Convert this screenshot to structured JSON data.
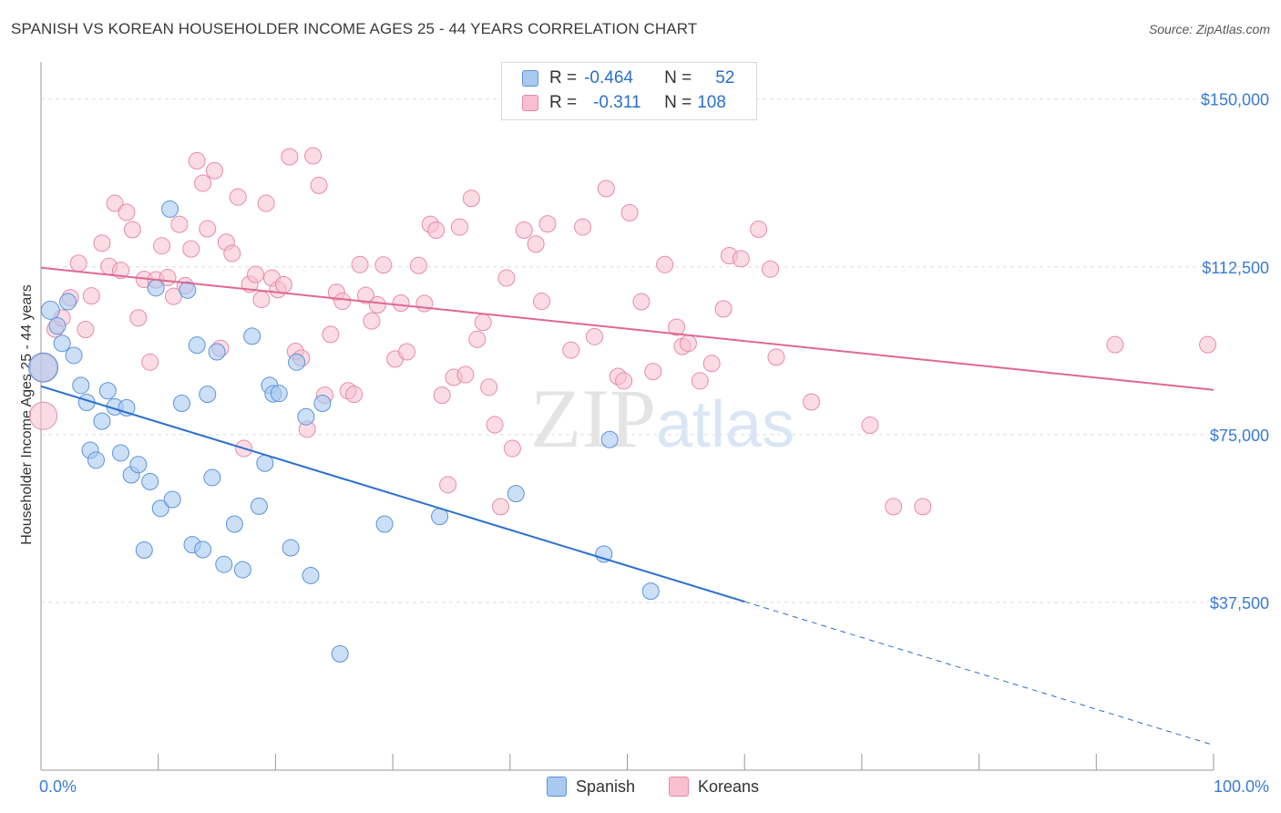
{
  "header": {
    "title": "SPANISH VS KOREAN HOUSEHOLDER INCOME AGES 25 - 44 YEARS CORRELATION CHART",
    "source": "Source: ZipAtlas.com"
  },
  "watermark": {
    "part1": "ZIP",
    "part2": "atlas"
  },
  "legend_top": {
    "rows": [
      {
        "r_label": "R =",
        "r_value": "-0.464",
        "n_label": "N =",
        "n_value": "52"
      },
      {
        "r_label": "R =",
        "r_value": "-0.311",
        "n_label": "N =",
        "n_value": "108"
      }
    ]
  },
  "legend_bottom": {
    "series1": "Spanish",
    "series2": "Koreans"
  },
  "colors": {
    "spanish_fill": "#a9c9f0",
    "spanish_stroke": "#5b93d9",
    "spanish_line": "#2a6fd0",
    "korean_fill": "#f7bfd0",
    "korean_stroke": "#e88aa8",
    "korean_line": "#e06890",
    "tick_label": "#3a7bd5",
    "grid": "#dddddd"
  },
  "chart_data": {
    "type": "scatter",
    "title": "SPANISH VS KOREAN HOUSEHOLDER INCOME AGES 25 - 44 YEARS CORRELATION CHART",
    "xlabel": "",
    "ylabel": "Householder Income Ages 25 - 44 years",
    "xlim": [
      0,
      100
    ],
    "ylim": [
      0,
      156250
    ],
    "x_tick_labels": [
      "0.0%",
      "100.0%"
    ],
    "y_ticks": [
      37500,
      75000,
      112500,
      150000
    ],
    "y_tick_labels": [
      "$37,500",
      "$75,000",
      "$112,500",
      "$150,000"
    ],
    "grid": true,
    "legend_position": "top-center",
    "series": [
      {
        "name": "Spanish",
        "r": -0.464,
        "n": 52,
        "trend": {
          "x0": 0,
          "y0": 85800,
          "x1": 100,
          "y1": 5600,
          "solid_until_x": 60
        },
        "points": [
          [
            0.2,
            90000,
            16
          ],
          [
            0.8,
            102800,
            10
          ],
          [
            1.4,
            99300,
            9
          ],
          [
            1.8,
            95400,
            9
          ],
          [
            2.3,
            104700,
            9
          ],
          [
            2.8,
            92700,
            9
          ],
          [
            3.4,
            86000,
            9
          ],
          [
            3.9,
            82200,
            9
          ],
          [
            4.2,
            71500,
            9
          ],
          [
            4.7,
            69300,
            9
          ],
          [
            5.2,
            78000,
            9
          ],
          [
            5.7,
            84800,
            9
          ],
          [
            6.3,
            81200,
            9
          ],
          [
            6.8,
            70900,
            9
          ],
          [
            7.3,
            81000,
            9
          ],
          [
            7.7,
            66000,
            9
          ],
          [
            8.3,
            68300,
            9
          ],
          [
            8.8,
            49200,
            9
          ],
          [
            9.3,
            64500,
            9
          ],
          [
            9.8,
            107800,
            9
          ],
          [
            10.2,
            58500,
            9
          ],
          [
            11.0,
            125400,
            9
          ],
          [
            11.2,
            60500,
            9
          ],
          [
            12.0,
            82000,
            9
          ],
          [
            12.5,
            107300,
            9
          ],
          [
            12.9,
            50400,
            9
          ],
          [
            13.3,
            95000,
            9
          ],
          [
            13.8,
            49300,
            9
          ],
          [
            14.2,
            84000,
            9
          ],
          [
            14.6,
            65400,
            9
          ],
          [
            15.0,
            93500,
            9
          ],
          [
            15.6,
            46000,
            9
          ],
          [
            16.5,
            55000,
            9
          ],
          [
            17.2,
            44800,
            9
          ],
          [
            18.0,
            97000,
            9
          ],
          [
            18.6,
            59000,
            9
          ],
          [
            19.1,
            68600,
            9
          ],
          [
            19.5,
            86000,
            9
          ],
          [
            19.8,
            84100,
            9
          ],
          [
            20.3,
            84200,
            9
          ],
          [
            21.3,
            49700,
            9
          ],
          [
            21.8,
            91200,
            9
          ],
          [
            22.6,
            79000,
            9
          ],
          [
            23.0,
            43500,
            9
          ],
          [
            24.0,
            82000,
            9
          ],
          [
            25.5,
            26000,
            9
          ],
          [
            29.3,
            55000,
            9
          ],
          [
            34.0,
            56700,
            9
          ],
          [
            40.5,
            61800,
            9
          ],
          [
            48.0,
            48300,
            9
          ],
          [
            48.5,
            73900,
            9
          ],
          [
            52.0,
            40000,
            9
          ]
        ]
      },
      {
        "name": "Koreans",
        "r": -0.311,
        "n": 108,
        "trend": {
          "x0": 0,
          "y0": 112300,
          "x1": 100,
          "y1": 85000
        },
        "points": [
          [
            0.2,
            90000,
            15
          ],
          [
            0.2,
            79200,
            15
          ],
          [
            1.2,
            98600,
            9
          ],
          [
            1.8,
            101100,
            9
          ],
          [
            2.5,
            105600,
            9
          ],
          [
            3.2,
            113300,
            9
          ],
          [
            3.8,
            98500,
            9
          ],
          [
            4.3,
            106000,
            9
          ],
          [
            5.2,
            117800,
            9
          ],
          [
            5.8,
            112600,
            9
          ],
          [
            6.3,
            126700,
            9
          ],
          [
            6.8,
            111700,
            9
          ],
          [
            7.3,
            124700,
            9
          ],
          [
            7.8,
            120800,
            9
          ],
          [
            8.3,
            101100,
            9
          ],
          [
            8.8,
            109700,
            9
          ],
          [
            9.3,
            91200,
            9
          ],
          [
            9.8,
            109600,
            9
          ],
          [
            10.3,
            117200,
            9
          ],
          [
            10.8,
            110100,
            9
          ],
          [
            11.3,
            105900,
            9
          ],
          [
            11.8,
            122000,
            9
          ],
          [
            12.3,
            108300,
            9
          ],
          [
            12.8,
            116500,
            9
          ],
          [
            13.3,
            136200,
            9
          ],
          [
            13.8,
            131200,
            9
          ],
          [
            14.2,
            121000,
            9
          ],
          [
            14.8,
            134000,
            9
          ],
          [
            15.3,
            94300,
            9
          ],
          [
            15.8,
            118000,
            9
          ],
          [
            16.3,
            115500,
            9
          ],
          [
            16.8,
            128100,
            9
          ],
          [
            17.3,
            71900,
            9
          ],
          [
            17.8,
            108600,
            9
          ],
          [
            18.3,
            110800,
            9
          ],
          [
            18.8,
            105200,
            9
          ],
          [
            19.2,
            126700,
            9
          ],
          [
            19.7,
            110000,
            9
          ],
          [
            20.2,
            107400,
            9
          ],
          [
            20.7,
            108500,
            9
          ],
          [
            21.2,
            137100,
            9
          ],
          [
            21.7,
            93600,
            9
          ],
          [
            22.2,
            92100,
            9
          ],
          [
            22.7,
            76200,
            9
          ],
          [
            23.2,
            137300,
            9
          ],
          [
            23.7,
            130700,
            9
          ],
          [
            24.2,
            83800,
            9
          ],
          [
            24.7,
            97400,
            9
          ],
          [
            25.2,
            106800,
            9
          ],
          [
            25.7,
            104800,
            9
          ],
          [
            26.2,
            84800,
            9
          ],
          [
            26.7,
            84000,
            9
          ],
          [
            27.2,
            113000,
            9
          ],
          [
            27.7,
            106100,
            9
          ],
          [
            28.2,
            100400,
            9
          ],
          [
            28.7,
            104000,
            9
          ],
          [
            29.2,
            112900,
            9
          ],
          [
            30.2,
            91900,
            9
          ],
          [
            30.7,
            104400,
            9
          ],
          [
            31.2,
            93500,
            9
          ],
          [
            32.2,
            112800,
            9
          ],
          [
            32.7,
            104300,
            9
          ],
          [
            33.2,
            122000,
            9
          ],
          [
            33.7,
            120700,
            9
          ],
          [
            34.2,
            83800,
            9
          ],
          [
            34.7,
            63800,
            9
          ],
          [
            35.2,
            87800,
            9
          ],
          [
            35.7,
            121400,
            9
          ],
          [
            36.2,
            88400,
            9
          ],
          [
            36.7,
            127800,
            9
          ],
          [
            37.2,
            96300,
            9
          ],
          [
            37.7,
            100100,
            9
          ],
          [
            38.2,
            85600,
            9
          ],
          [
            38.7,
            77200,
            9
          ],
          [
            39.2,
            58900,
            9
          ],
          [
            39.7,
            110000,
            9
          ],
          [
            40.2,
            71900,
            9
          ],
          [
            41.2,
            120700,
            9
          ],
          [
            42.2,
            117600,
            9
          ],
          [
            42.7,
            104800,
            9
          ],
          [
            43.2,
            122100,
            9
          ],
          [
            45.2,
            93900,
            9
          ],
          [
            46.2,
            121400,
            9
          ],
          [
            47.2,
            96900,
            9
          ],
          [
            48.2,
            130000,
            9
          ],
          [
            49.2,
            88000,
            9
          ],
          [
            49.7,
            87000,
            9
          ],
          [
            50.2,
            124600,
            9
          ],
          [
            51.2,
            104700,
            9
          ],
          [
            52.2,
            89100,
            9
          ],
          [
            53.2,
            113000,
            9
          ],
          [
            54.2,
            99000,
            9
          ],
          [
            54.7,
            94700,
            9
          ],
          [
            55.2,
            95400,
            9
          ],
          [
            56.2,
            87000,
            9
          ],
          [
            57.2,
            90900,
            9
          ],
          [
            58.2,
            103100,
            9
          ],
          [
            58.7,
            115000,
            9
          ],
          [
            59.7,
            114300,
            9
          ],
          [
            61.2,
            120900,
            9
          ],
          [
            62.2,
            112000,
            9
          ],
          [
            62.7,
            92300,
            9
          ],
          [
            65.7,
            82300,
            9
          ],
          [
            70.7,
            77100,
            9
          ],
          [
            72.7,
            58900,
            9
          ],
          [
            75.2,
            58900,
            9
          ],
          [
            91.6,
            95100,
            9
          ],
          [
            99.5,
            95100,
            9
          ]
        ]
      }
    ]
  }
}
